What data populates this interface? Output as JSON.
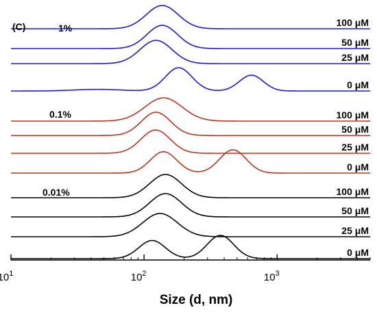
{
  "chart_data": {
    "type": "line",
    "panel_label": "(C)",
    "xlabel": "Size (d, nm)",
    "x_scale": "log",
    "xlim": [
      10,
      5000
    ],
    "x_ticks": [
      {
        "value": 10,
        "base": "10",
        "exp": "1"
      },
      {
        "value": 100,
        "base": "10",
        "exp": "2"
      },
      {
        "value": 1000,
        "base": "10",
        "exp": "3"
      }
    ],
    "colors": {
      "1%": "#1a1ac8",
      "0.1%": "#b5361e",
      "0.01%": "#000000"
    },
    "groups": [
      {
        "name": "1%",
        "color": "#1a1ac8",
        "series": [
          {
            "name": "100 μM",
            "peaks": [
              {
                "center": 137,
                "height": 1.0,
                "width": 0.12
              }
            ]
          },
          {
            "name": "50 μM",
            "peaks": [
              {
                "center": 137,
                "height": 1.0,
                "width": 0.115
              }
            ]
          },
          {
            "name": "25 μM",
            "peaks": [
              {
                "center": 123,
                "height": 1.0,
                "width": 0.12
              }
            ]
          },
          {
            "name": "0 μM",
            "peaks": [
              {
                "center": 45,
                "height": 0.07,
                "width": 0.18
              },
              {
                "center": 182,
                "height": 1.0,
                "width": 0.1
              },
              {
                "center": 640,
                "height": 0.68,
                "width": 0.09
              }
            ]
          }
        ]
      },
      {
        "name": "0.1%",
        "color": "#b5361e",
        "series": [
          {
            "name": "100 μM",
            "peaks": [
              {
                "center": 140,
                "height": 1.0,
                "width": 0.14
              }
            ]
          },
          {
            "name": "50 μM",
            "peaks": [
              {
                "center": 123,
                "height": 1.0,
                "width": 0.11
              }
            ]
          },
          {
            "name": "25 μM",
            "peaks": [
              {
                "center": 122,
                "height": 1.0,
                "width": 0.11
              }
            ]
          },
          {
            "name": "0 μM",
            "peaks": [
              {
                "center": 140,
                "height": 0.92,
                "width": 0.1
              },
              {
                "center": 465,
                "height": 1.0,
                "width": 0.1
              }
            ]
          }
        ]
      },
      {
        "name": "0.01%",
        "color": "#000000",
        "series": [
          {
            "name": "100 μM",
            "peaks": [
              {
                "center": 145,
                "height": 1.0,
                "width": 0.12
              }
            ]
          },
          {
            "name": "50 μM",
            "peaks": [
              {
                "center": 145,
                "height": 1.0,
                "width": 0.12
              }
            ]
          },
          {
            "name": "25 μM",
            "peaks": [
              {
                "center": 132,
                "height": 1.0,
                "width": 0.13
              }
            ]
          },
          {
            "name": "0 μM",
            "peaks": [
              {
                "center": 115,
                "height": 0.78,
                "width": 0.1
              },
              {
                "center": 375,
                "height": 1.0,
                "width": 0.1
              }
            ]
          }
        ]
      }
    ]
  }
}
